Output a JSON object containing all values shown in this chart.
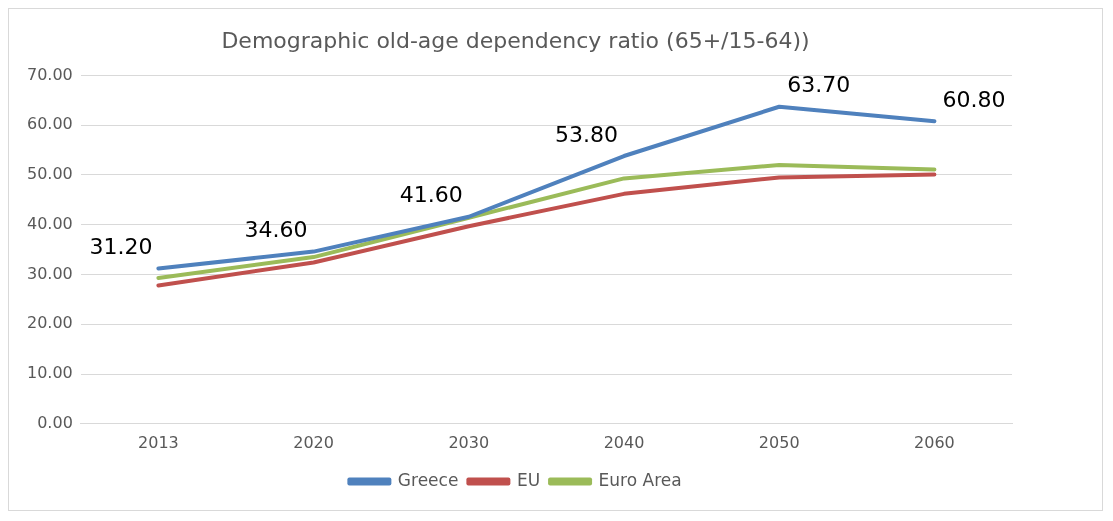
{
  "chart_data": {
    "type": "line",
    "title": "Demographic old-age dependency ratio (65+/15-64))",
    "categories": [
      "2013",
      "2020",
      "2030",
      "2040",
      "2050",
      "2060"
    ],
    "series": [
      {
        "name": "Greece",
        "color": "#4f81bd",
        "values": [
          31.2,
          34.6,
          41.6,
          53.8,
          63.7,
          60.8
        ],
        "value_labels": [
          "31.20",
          "34.60",
          "41.60",
          "53.80",
          "63.70",
          "60.80"
        ]
      },
      {
        "name": "EU",
        "color": "#c0504d",
        "values": [
          27.8,
          32.4,
          39.7,
          46.2,
          49.5,
          50.1
        ]
      },
      {
        "name": "Euro Area",
        "color": "#9bbb59",
        "values": [
          29.3,
          33.5,
          41.4,
          49.3,
          52.0,
          51.1
        ]
      }
    ],
    "ylim": [
      0,
      70
    ],
    "yticks": [
      {
        "value": 0,
        "label": "0.00"
      },
      {
        "value": 10,
        "label": "10.00"
      },
      {
        "value": 20,
        "label": "20.00"
      },
      {
        "value": 30,
        "label": "30.00"
      },
      {
        "value": 40,
        "label": "40.00"
      },
      {
        "value": 50,
        "label": "50.00"
      },
      {
        "value": 60,
        "label": "60.00"
      },
      {
        "value": 70,
        "label": "70.00"
      }
    ],
    "grid": "y",
    "legend": "bottom",
    "marker": "none",
    "line_style": "solid"
  }
}
